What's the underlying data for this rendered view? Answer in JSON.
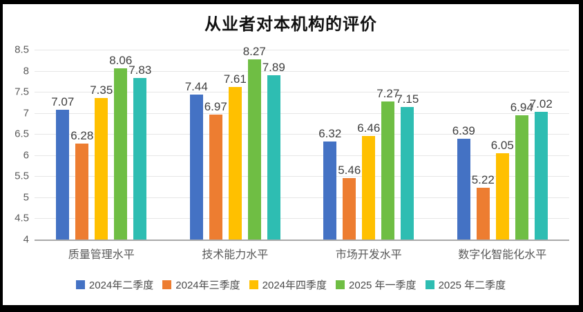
{
  "chart_data": {
    "type": "bar",
    "title": "从业者对本机构的评价",
    "categories": [
      "质量管理水平",
      "技术能力水平",
      "市场开发水平",
      "数字化智能化水平"
    ],
    "series": [
      {
        "name": "2024年二季度",
        "color": "#4472C4",
        "values": [
          7.07,
          7.44,
          6.32,
          6.39
        ]
      },
      {
        "name": "2024年三季度",
        "color": "#ED7D31",
        "values": [
          6.28,
          6.97,
          5.46,
          5.22
        ]
      },
      {
        "name": "2024年四季度",
        "color": "#FFC000",
        "values": [
          7.35,
          7.61,
          6.46,
          6.05
        ]
      },
      {
        "name": "2025 年一季度",
        "color": "#6FBE44",
        "values": [
          8.06,
          8.27,
          7.27,
          6.94
        ]
      },
      {
        "name": "2025 年二季度",
        "color": "#2EBDB2",
        "values": [
          7.83,
          7.89,
          7.15,
          7.02
        ]
      }
    ],
    "y_axis": {
      "min": 4,
      "max": 8.5,
      "step": 0.5,
      "ticks": [
        "8.5",
        "8",
        "7.5",
        "7",
        "6.5",
        "6",
        "5.5",
        "5",
        "4.5",
        "4"
      ]
    },
    "grid": true,
    "legend_position": "bottom",
    "data_labels": true,
    "colors": {
      "gridline": "#e6e6e6",
      "axis_line": "#a9a9a9",
      "tick_text": "#595959",
      "data_label_text": "#3f3f3f",
      "frame_border": "#000000"
    }
  }
}
